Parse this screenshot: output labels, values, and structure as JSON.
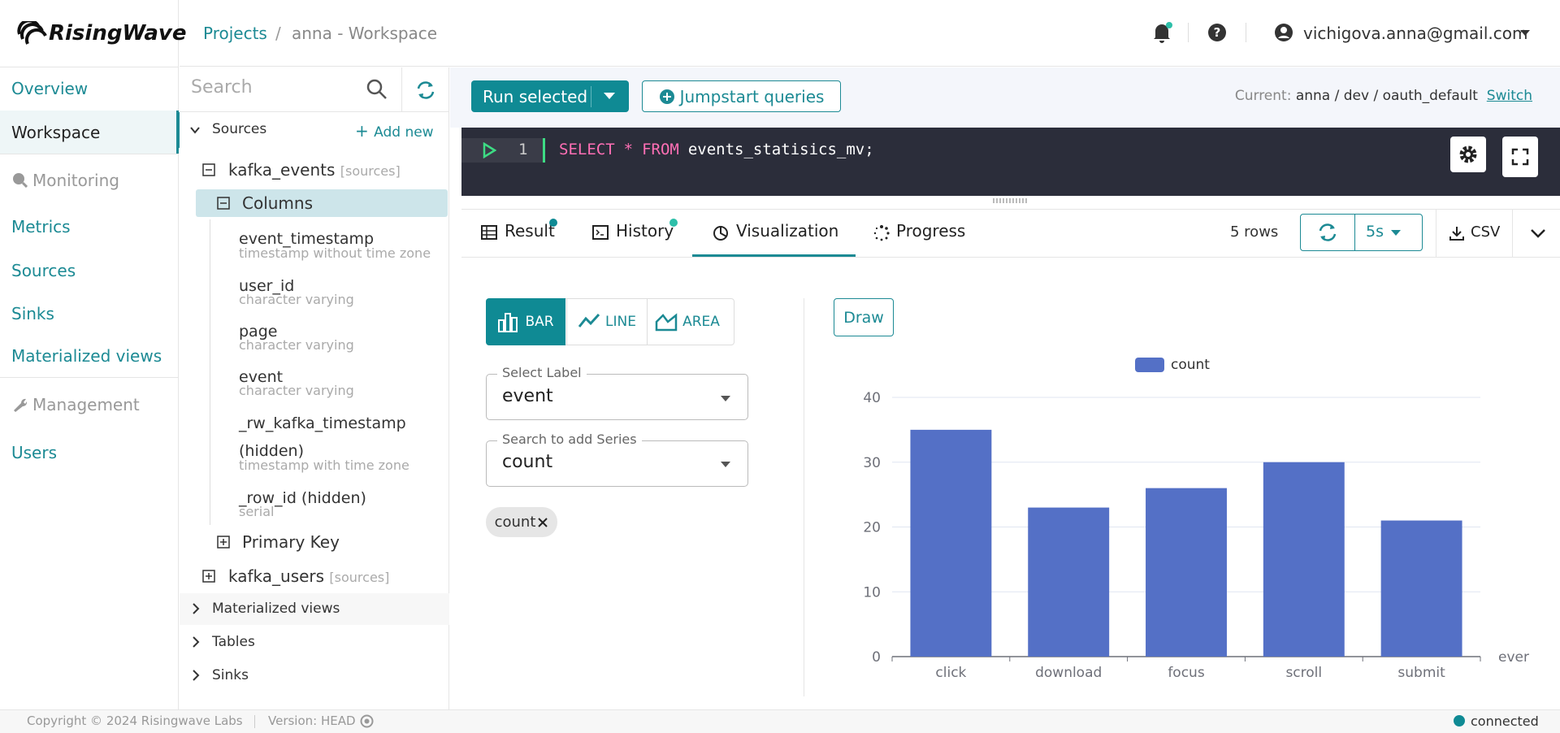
{
  "header": {
    "logo": "RisingWave",
    "projects": "Projects",
    "separator": "/",
    "workspace": "anna - Workspace",
    "user": "vichigova.anna@gmail.com"
  },
  "nav": {
    "overview": "Overview",
    "workspace": "Workspace",
    "monitoring": "Monitoring",
    "metrics": "Metrics",
    "sources": "Sources",
    "sinks": "Sinks",
    "materialized_views": "Materialized views",
    "management": "Management",
    "users": "Users"
  },
  "explorer": {
    "search": "Search",
    "sources": {
      "name": "Sources",
      "action": "Add new",
      "items": [
        {
          "name": "kafka_events",
          "kind": "[sources]",
          "columns_label": "Columns",
          "columns": [
            {
              "name": "event_timestamp",
              "type": "timestamp without time zone"
            },
            {
              "name": "user_id",
              "type": "character varying"
            },
            {
              "name": "page",
              "type": "character varying"
            },
            {
              "name": "event",
              "type": "character varying"
            },
            {
              "name": "_rw_kafka_timestamp (hidden)",
              "type": "timestamp with time zone"
            },
            {
              "name": "_row_id (hidden)",
              "type": "serial"
            }
          ],
          "primary_key": "Primary Key"
        },
        {
          "name": "kafka_users",
          "kind": "[sources]"
        }
      ]
    },
    "sections": [
      "Materialized views",
      "Tables",
      "Sinks"
    ]
  },
  "toolbar": {
    "run": "Run selected",
    "jumpstart": "Jumpstart queries",
    "current_label": "Current:",
    "current": "anna / dev / oauth_default",
    "switch": "Switch"
  },
  "editor": {
    "line": 1,
    "tokens": [
      "SELECT",
      "*",
      "FROM",
      "events_statisics_mv;"
    ]
  },
  "tabs": {
    "items": [
      "Result",
      "History",
      "Visualization",
      "Progress"
    ],
    "rows": "5 rows",
    "interval": "5s",
    "csv": "CSV"
  },
  "viz": {
    "types": [
      "BAR",
      "LINE",
      "AREA"
    ],
    "label_caption": "Select Label",
    "label_value": "event",
    "series_caption": "Search to add Series",
    "series_value": "count",
    "chip": "count",
    "draw": "Draw"
  },
  "chart_data": {
    "type": "bar",
    "categories": [
      "click",
      "download",
      "focus",
      "scroll",
      "submit"
    ],
    "series": [
      {
        "name": "count",
        "color": "#5470c6",
        "values": [
          35,
          23,
          26,
          30,
          21
        ]
      }
    ],
    "xlabel": "ever",
    "ylim": [
      0,
      40
    ],
    "yticks": [
      0,
      10,
      20,
      30,
      40
    ],
    "grid": true
  },
  "footer": {
    "copyright": "Copyright © 2024 Risingwave Labs",
    "version": "Version: HEAD",
    "status": "connected"
  }
}
